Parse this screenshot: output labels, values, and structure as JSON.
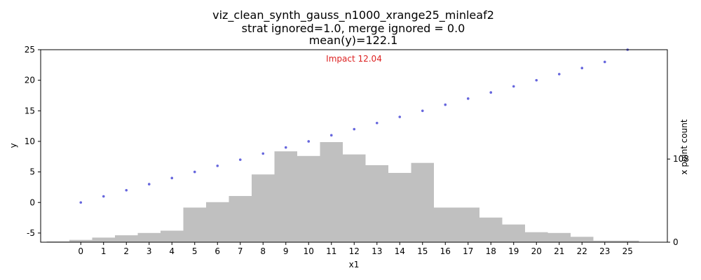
{
  "chart_data": {
    "type": "scatter",
    "title_lines": [
      "viz_clean_synth_gauss_n1000_xrange25_minleaf2",
      "strat ignored=1.0, merge ignored = 0.0",
      "mean(y)=122.1"
    ],
    "xlabel": "x1",
    "ylabel": "y",
    "y2label": "x point count",
    "annotation": "Impact 12.04",
    "ylim": [
      -6.5,
      25
    ],
    "yticks": [
      -5,
      0,
      5,
      10,
      15,
      20,
      25
    ],
    "y2ticks": [
      0,
      108
    ],
    "y2_max": 250,
    "x_tick_labels": [
      "0",
      "1",
      "2",
      "3",
      "4",
      "5",
      "6",
      "7",
      "8",
      "9",
      "10",
      "11",
      "12",
      "13",
      "14",
      "15",
      "16",
      "17",
      "18",
      "19",
      "20",
      "21",
      "22",
      "23",
      "25"
    ],
    "points": {
      "x": [
        "0",
        "1",
        "2",
        "3",
        "4",
        "5",
        "6",
        "7",
        "8",
        "9",
        "10",
        "11",
        "12",
        "13",
        "14",
        "15",
        "16",
        "17",
        "18",
        "19",
        "20",
        "21",
        "22",
        "23",
        "25"
      ],
      "y": [
        0,
        1,
        2,
        3,
        4,
        5,
        6,
        7,
        8,
        9,
        10,
        11,
        12,
        13,
        14,
        15,
        16,
        17,
        18,
        19,
        20,
        21,
        22,
        23,
        25
      ]
    },
    "histogram": {
      "x": [
        "-1",
        "0",
        "1",
        "2",
        "3",
        "4",
        "5",
        "6",
        "7",
        "8",
        "9",
        "10",
        "11",
        "12",
        "13",
        "14",
        "15",
        "16",
        "17",
        "18",
        "19",
        "20",
        "21",
        "22",
        "23",
        "24",
        "25"
      ],
      "counts": [
        1,
        3,
        6,
        9,
        12,
        15,
        45,
        52,
        60,
        88,
        118,
        112,
        130,
        114,
        100,
        90,
        103,
        45,
        45,
        32,
        23,
        13,
        12,
        7,
        2,
        1,
        2
      ]
    },
    "colors": {
      "points": "#6666dd",
      "bars": "#c0c0c0",
      "annotation": "#dd2222",
      "axes": "#000000"
    }
  }
}
